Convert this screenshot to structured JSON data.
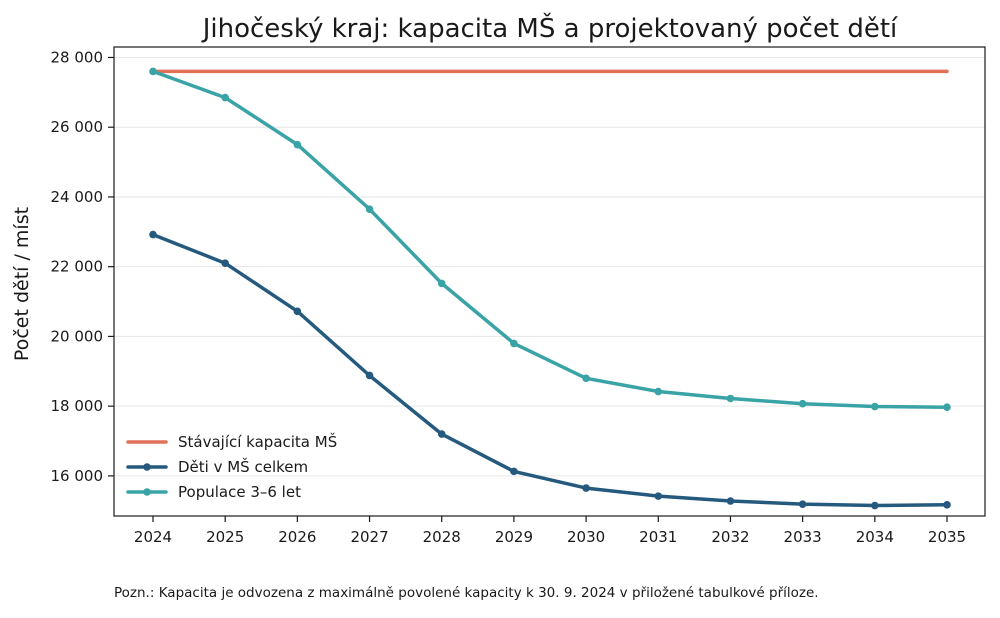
{
  "chart_data": {
    "type": "line",
    "title": "Jihočeský kraj: kapacita MŠ a projektovaný počet dětí",
    "xlabel": "",
    "ylabel": "Počet dětí / míst",
    "x": [
      2024,
      2025,
      2026,
      2027,
      2028,
      2029,
      2030,
      2031,
      2032,
      2033,
      2034,
      2035
    ],
    "x_tick_labels": [
      "2024",
      "2025",
      "2026",
      "2027",
      "2028",
      "2029",
      "2030",
      "2031",
      "2032",
      "2033",
      "2034",
      "2035"
    ],
    "ylim": [
      14850,
      28300
    ],
    "y_ticks": [
      16000,
      18000,
      20000,
      22000,
      24000,
      26000,
      28000
    ],
    "y_tick_labels": [
      "16 000",
      "18 000",
      "20 000",
      "22 000",
      "24 000",
      "26 000",
      "28 000"
    ],
    "grid": "horizontal",
    "legend_position": "lower-left",
    "series": [
      {
        "name": "Stávající kapacita MŠ",
        "color": "#e07058",
        "markers": false,
        "values": [
          27600,
          27600,
          27600,
          27600,
          27600,
          27600,
          27600,
          27600,
          27600,
          27600,
          27600,
          27600
        ]
      },
      {
        "name": "Děti v MŠ celkem",
        "color": "#255a7e",
        "markers": true,
        "values": [
          22920,
          22100,
          20720,
          18880,
          17200,
          16130,
          15650,
          15420,
          15280,
          15190,
          15150,
          15170
        ]
      },
      {
        "name": "Populace 3–6 let",
        "color": "#3aa3a6",
        "markers": true,
        "values": [
          27600,
          26850,
          25500,
          23650,
          21520,
          19800,
          18800,
          18420,
          18220,
          18070,
          17990,
          17970
        ]
      }
    ]
  },
  "note": "Pozn.: Kapacita je odvozena z maximálně povolené kapacity k 30. 9. 2024 v přiložené tabulkové příloze."
}
